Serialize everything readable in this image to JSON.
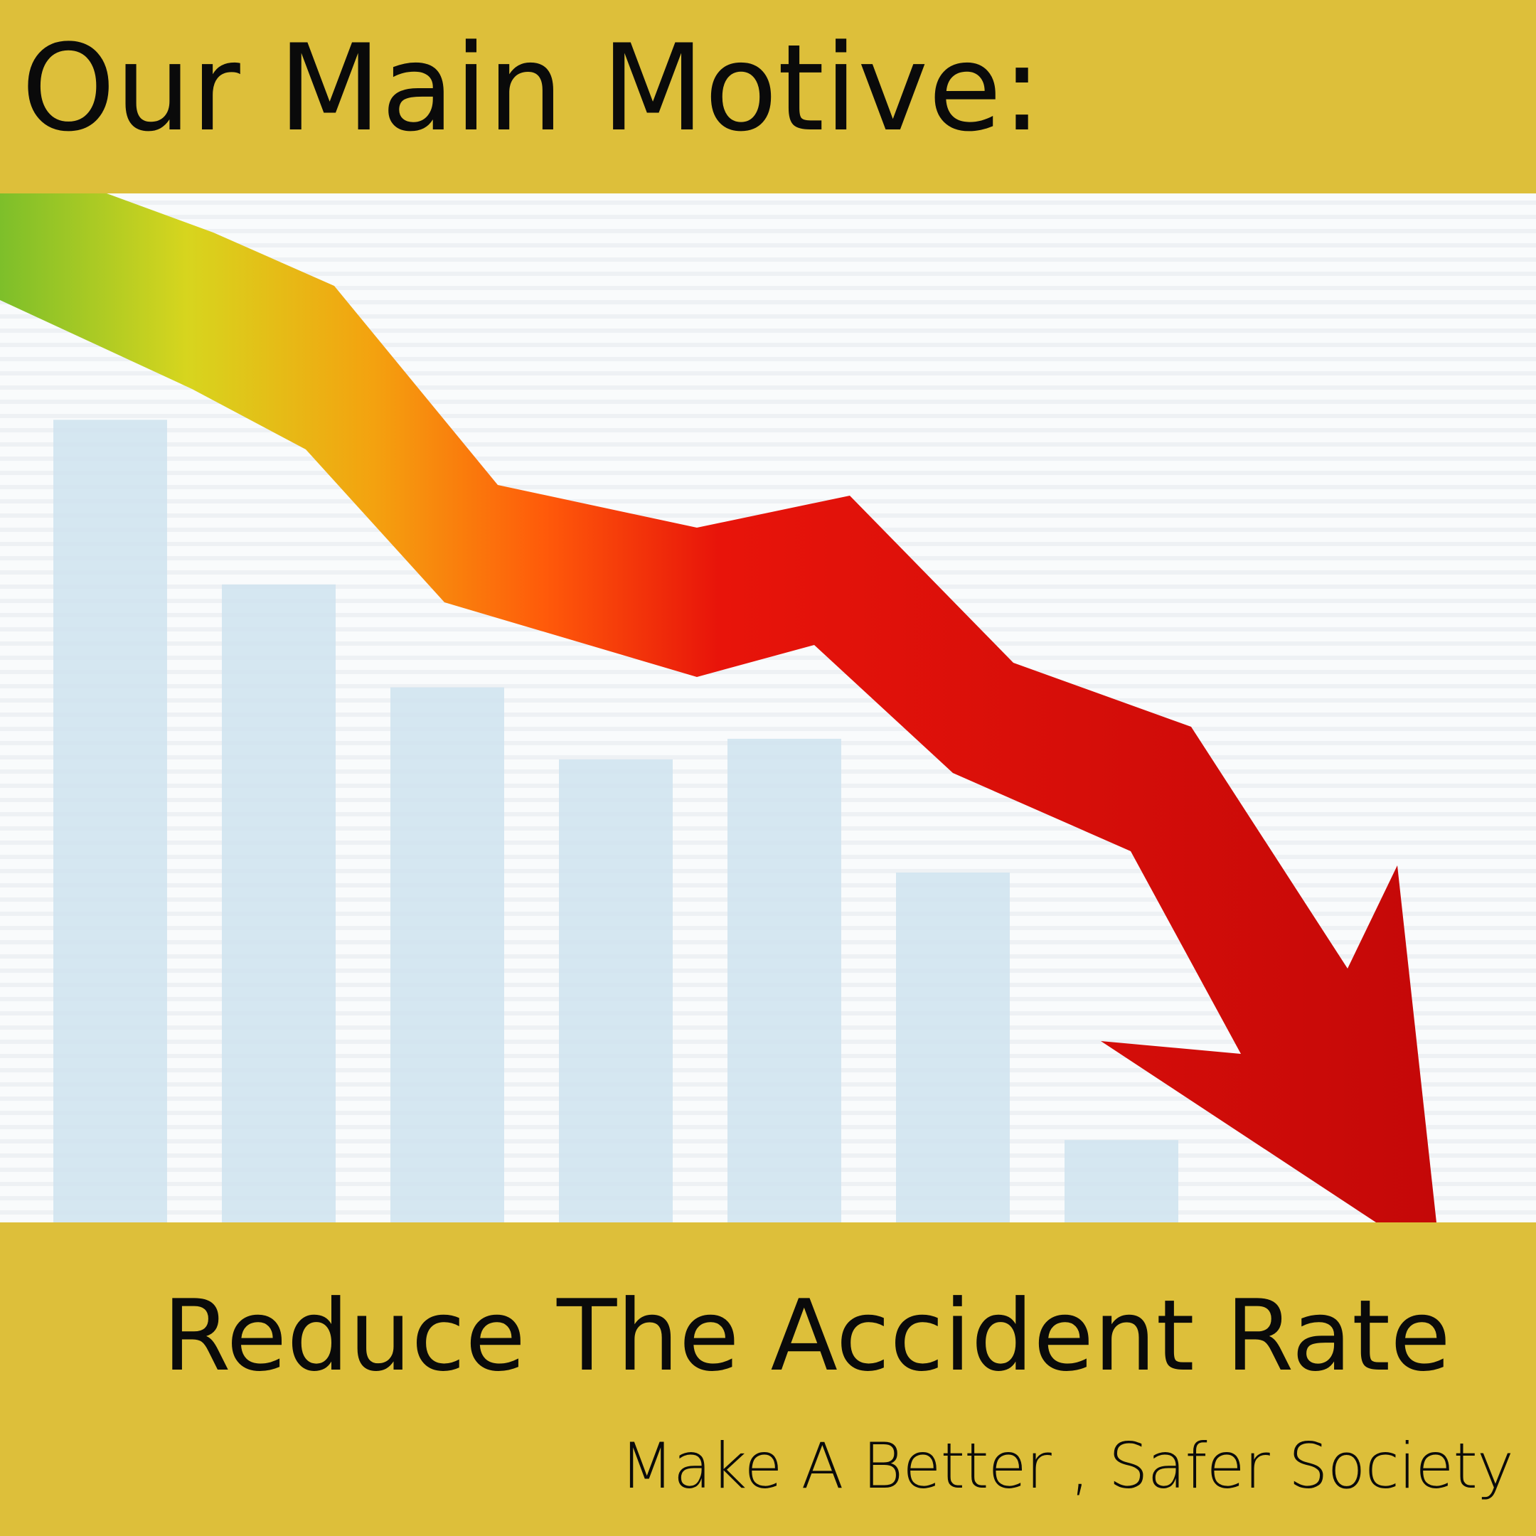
{
  "header": {
    "title": "Our Main Motive:"
  },
  "footer": {
    "tagline": "Reduce The Accident Rate",
    "subtagline": "Make A Better , Safer Society"
  },
  "colors": {
    "band": "#ddbf3a",
    "text": "#0a0a0a",
    "bars": "#cfe3ee",
    "arrow_start": "#7dbf2a",
    "arrow_mid": "#f2a20c",
    "arrow_end": "#d80a0a"
  },
  "illustration": {
    "icon": "downward-trend-arrow-icon",
    "background_bar_levels": [
      0.78,
      0.62,
      0.52,
      0.45,
      0.47,
      0.34,
      0.08
    ]
  }
}
